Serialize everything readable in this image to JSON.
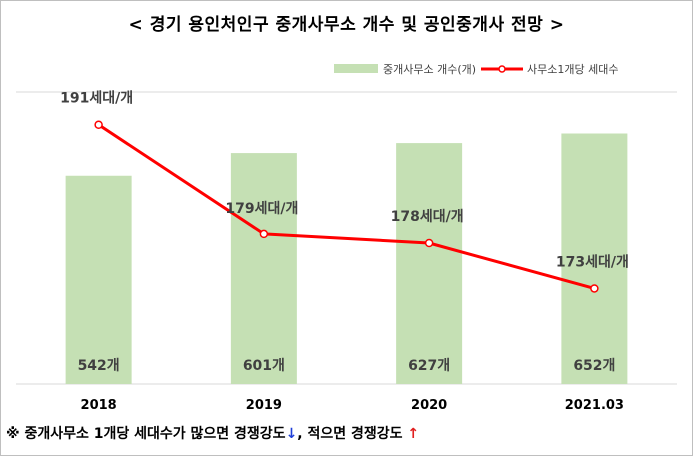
{
  "title": "< 경기 용인처인구 중개사무소 개수 및 공인중개사 전망 >",
  "note": {
    "prefix": "※ 중개사무소 1개당 세대수가 많으면 경쟁강도",
    "down_arrow": "↓",
    "middle": ", 적으면 경쟁강도 ",
    "up_arrow": "↑"
  },
  "colors": {
    "bar": "#c5e0b4",
    "line": "#ff0000",
    "gridline": "#d9d9d9",
    "text": "#404040"
  },
  "chart_data": {
    "type": "bar",
    "categories": [
      "2018",
      "2019",
      "2020",
      "2021.03"
    ],
    "legend_position": "top-right",
    "grid": true,
    "series": [
      {
        "name": "중개사무소 개수(개)",
        "type": "bar",
        "values": [
          542,
          601,
          627,
          652
        ],
        "labels": [
          "542개",
          "601개",
          "627개",
          "652개"
        ],
        "ylim": [
          0,
          760
        ]
      },
      {
        "name": "사무소1개당 세대수",
        "type": "line",
        "values": [
          191,
          179,
          178,
          173
        ],
        "labels": [
          "191세대/개",
          "179세대/개",
          "178세대/개",
          "173세대/개"
        ],
        "ylim": [
          162.5,
          194.6
        ]
      }
    ]
  }
}
